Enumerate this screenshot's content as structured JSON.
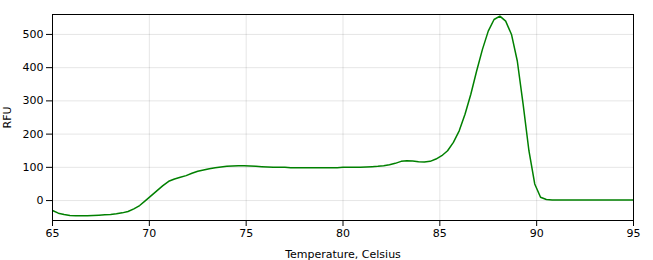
{
  "chart_data": {
    "type": "line",
    "xlabel": "Temperature, Celsius",
    "ylabel": "RFU",
    "xlim": [
      65,
      95
    ],
    "ylim": [
      -60,
      560
    ],
    "xticks": [
      65,
      70,
      75,
      80,
      85,
      90,
      95
    ],
    "yticks": [
      0,
      100,
      200,
      300,
      400,
      500
    ],
    "grid": true,
    "color": "#008000",
    "x": [
      65.0,
      65.3,
      65.6,
      65.9,
      66.2,
      66.5,
      66.8,
      67.1,
      67.4,
      67.7,
      68.0,
      68.3,
      68.6,
      68.9,
      69.2,
      69.5,
      69.8,
      70.1,
      70.4,
      70.7,
      71.0,
      71.3,
      71.6,
      71.9,
      72.2,
      72.5,
      72.8,
      73.1,
      73.4,
      73.7,
      74.0,
      74.3,
      74.6,
      74.9,
      75.2,
      75.5,
      75.8,
      76.1,
      76.4,
      76.7,
      77.0,
      77.3,
      77.6,
      77.9,
      78.2,
      78.5,
      78.8,
      79.1,
      79.4,
      79.7,
      80.0,
      80.3,
      80.6,
      80.9,
      81.2,
      81.5,
      81.8,
      82.1,
      82.4,
      82.7,
      83.0,
      83.3,
      83.6,
      83.9,
      84.2,
      84.5,
      84.8,
      85.1,
      85.4,
      85.7,
      86.0,
      86.3,
      86.6,
      86.9,
      87.2,
      87.5,
      87.8,
      88.1,
      88.4,
      88.7,
      89.0,
      89.3,
      89.6,
      89.9,
      90.2,
      90.5,
      90.8,
      91.1,
      91.4,
      91.7,
      92.0,
      92.5,
      93.0,
      93.5,
      94.0,
      94.5,
      95.0
    ],
    "values": [
      -30,
      -38,
      -42,
      -45,
      -46,
      -46,
      -46,
      -45,
      -44,
      -43,
      -42,
      -40,
      -37,
      -33,
      -25,
      -15,
      0,
      15,
      30,
      45,
      58,
      65,
      70,
      75,
      82,
      88,
      92,
      96,
      99,
      101,
      103,
      104,
      105,
      105,
      104,
      103,
      102,
      101,
      100,
      100,
      100,
      99,
      99,
      99,
      99,
      99,
      99,
      99,
      99,
      99,
      100,
      100,
      100,
      100,
      101,
      102,
      103,
      105,
      108,
      112,
      118,
      120,
      119,
      117,
      116,
      118,
      125,
      135,
      150,
      175,
      210,
      260,
      320,
      390,
      455,
      510,
      545,
      555,
      540,
      500,
      420,
      290,
      150,
      50,
      10,
      3,
      2,
      2,
      2,
      2,
      2,
      2,
      2,
      2,
      2,
      2,
      2
    ]
  }
}
